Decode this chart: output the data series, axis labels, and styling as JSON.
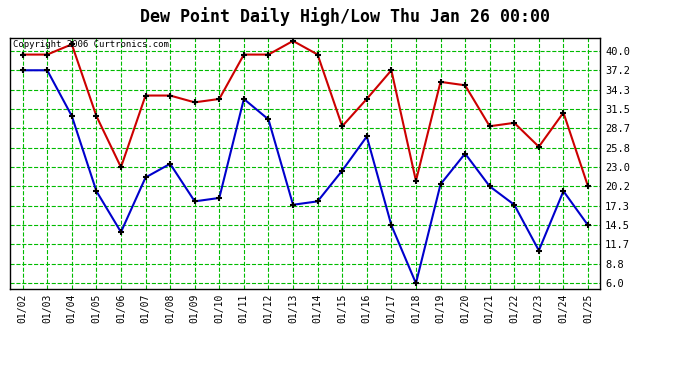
{
  "title": "Dew Point Daily High/Low Thu Jan 26 00:00",
  "copyright": "Copyright 2006 Curtronics.com",
  "dates": [
    "01/02",
    "01/03",
    "01/04",
    "01/05",
    "01/06",
    "01/07",
    "01/08",
    "01/09",
    "01/10",
    "01/11",
    "01/12",
    "01/13",
    "01/14",
    "01/15",
    "01/16",
    "01/17",
    "01/18",
    "01/19",
    "01/20",
    "01/21",
    "01/22",
    "01/23",
    "01/24",
    "01/25"
  ],
  "high": [
    39.5,
    39.5,
    41.0,
    30.5,
    23.0,
    33.5,
    33.5,
    32.5,
    33.0,
    39.5,
    39.5,
    41.5,
    39.5,
    29.0,
    33.0,
    37.2,
    21.0,
    35.5,
    35.0,
    29.0,
    29.5,
    26.0,
    31.0,
    20.2
  ],
  "low": [
    37.2,
    37.2,
    30.5,
    19.5,
    13.5,
    21.5,
    23.5,
    18.0,
    18.5,
    33.0,
    30.0,
    17.5,
    18.0,
    22.5,
    27.5,
    14.5,
    6.0,
    20.5,
    25.0,
    20.2,
    17.5,
    10.8,
    19.5,
    14.5
  ],
  "high_color": "#cc0000",
  "low_color": "#0000cc",
  "bg_color": "#ffffff",
  "plot_bg_color": "#ffffff",
  "grid_color": "#00bb00",
  "border_color": "#000000",
  "title_color": "#000000",
  "yticks": [
    6.0,
    8.8,
    11.7,
    14.5,
    17.3,
    20.2,
    23.0,
    25.8,
    28.7,
    31.5,
    34.3,
    37.2,
    40.0
  ],
  "ylim": [
    5.2,
    42.0
  ],
  "title_fontsize": 12,
  "marker": "+",
  "markersize": 5,
  "markeredgewidth": 1.5,
  "linewidth": 1.5
}
